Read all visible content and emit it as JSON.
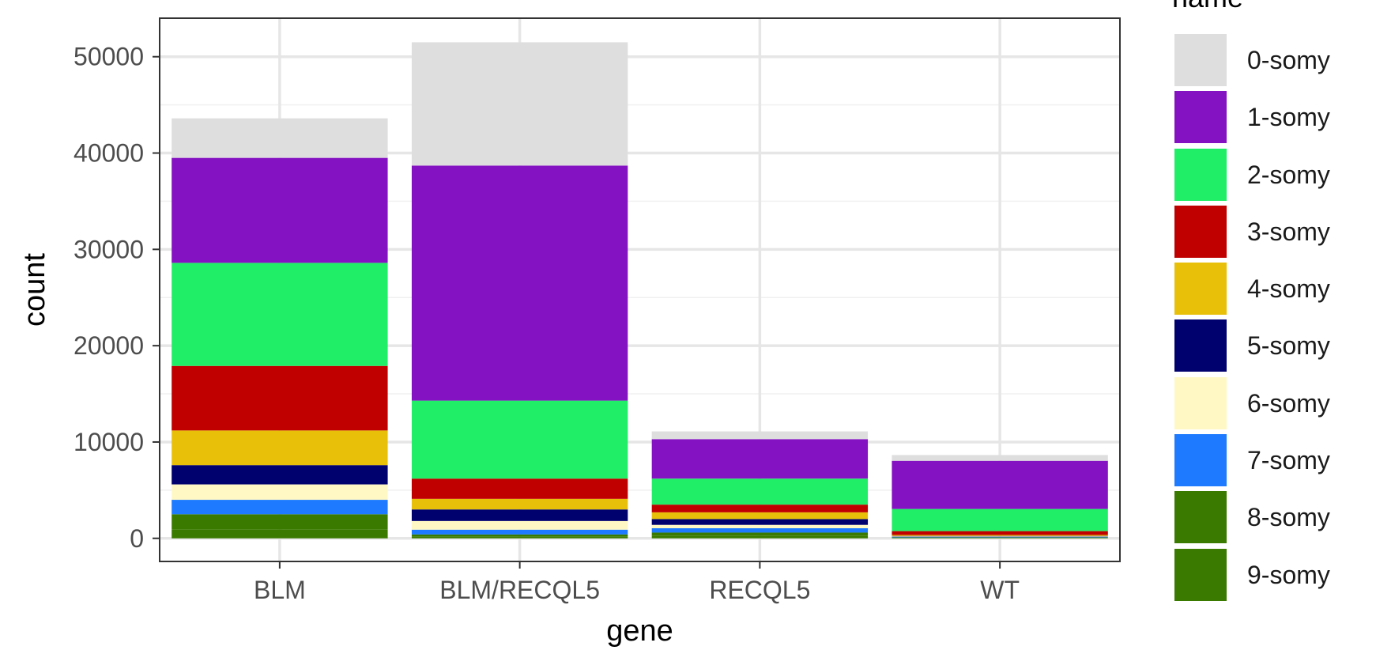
{
  "chart_data": {
    "type": "bar",
    "stacked": true,
    "xlabel": "gene",
    "ylabel": "count",
    "categories": [
      "BLM",
      "BLM/RECQL5",
      "RECQL5",
      "WT"
    ],
    "ylim": [
      -2400,
      54000
    ],
    "yticks": [
      0,
      10000,
      20000,
      30000,
      40000,
      50000
    ],
    "ytick_labels": [
      "0",
      "10000",
      "20000",
      "30000",
      "40000",
      "50000"
    ],
    "grid": true,
    "legend": {
      "title": "name",
      "position": "right"
    },
    "series": [
      {
        "name": "9-somy",
        "color": "#3a7a00",
        "values": [
          900,
          200,
          250,
          50
        ]
      },
      {
        "name": "8-somy",
        "color": "#3a7a00",
        "values": [
          1600,
          200,
          350,
          50
        ]
      },
      {
        "name": "7-somy",
        "color": "#1e7bff",
        "values": [
          1500,
          500,
          450,
          50
        ]
      },
      {
        "name": "6-somy",
        "color": "#fff8c4",
        "values": [
          1600,
          900,
          350,
          50
        ]
      },
      {
        "name": "5-somy",
        "color": "#00006e",
        "values": [
          2000,
          1200,
          600,
          50
        ]
      },
      {
        "name": "4-somy",
        "color": "#e8c00a",
        "values": [
          3600,
          1100,
          700,
          100
        ]
      },
      {
        "name": "3-somy",
        "color": "#c00000",
        "values": [
          6700,
          2100,
          800,
          400
        ]
      },
      {
        "name": "2-somy",
        "color": "#20ee66",
        "values": [
          10700,
          8100,
          2700,
          2300
        ]
      },
      {
        "name": "1-somy",
        "color": "#8512c2",
        "values": [
          10900,
          24400,
          4100,
          5000
        ]
      },
      {
        "name": "0-somy",
        "color": "#dedede",
        "values": [
          4100,
          12800,
          800,
          600
        ]
      }
    ]
  }
}
